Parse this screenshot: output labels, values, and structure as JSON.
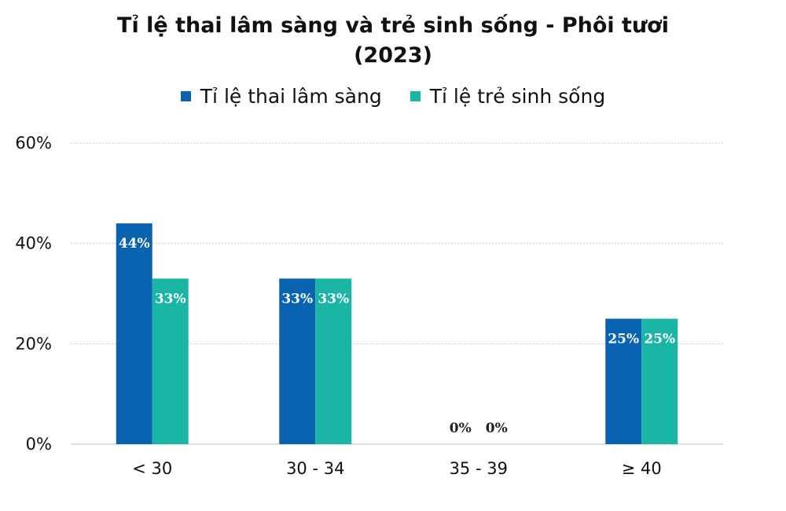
{
  "chart_data": {
    "type": "bar",
    "title": "Tỉ lệ thai lâm sàng và trẻ sinh sống - Phôi tươi (2023)",
    "categories": [
      "< 30",
      "30 - 34",
      "35 - 39",
      "≥ 40"
    ],
    "series": [
      {
        "name": "Tỉ lệ thai lâm sàng",
        "values": [
          44,
          33,
          0,
          25
        ],
        "labels": [
          "44%",
          "33%",
          "0%",
          "25%"
        ],
        "color": "#0a63b1"
      },
      {
        "name": "Tỉ lệ trẻ sinh sống",
        "values": [
          33,
          33,
          0,
          25
        ],
        "labels": [
          "33%",
          "33%",
          "0%",
          "25%"
        ],
        "color": "#1ab5a5"
      }
    ],
    "ylim": [
      0,
      60
    ],
    "yticks": [
      0,
      20,
      40,
      60
    ],
    "ytick_labels": [
      "0%",
      "20%",
      "40%",
      "60%"
    ],
    "grid": true,
    "legend_position": "top-center"
  }
}
